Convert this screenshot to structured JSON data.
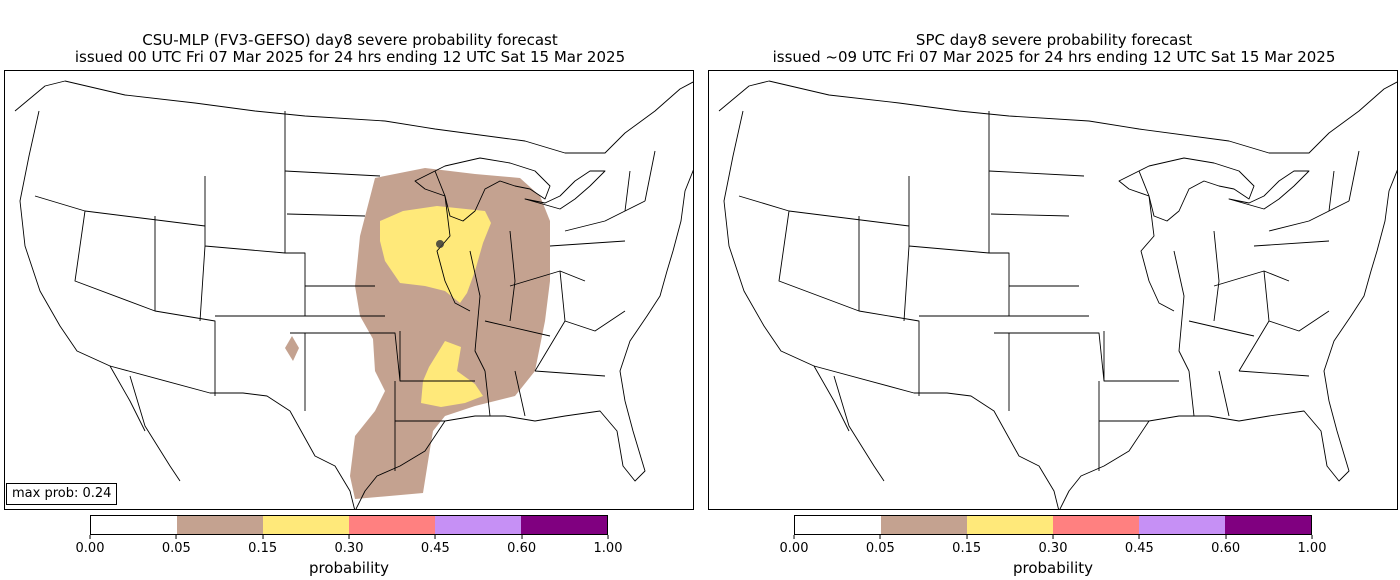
{
  "left_panel": {
    "title_line1": "CSU-MLP (FV3-GEFSO) day8 severe probability forecast",
    "title_line2": "issued 00 UTC Fri 07 Mar 2025 for 24 hrs ending 12 UTC Sat 15 Mar 2025",
    "max_prob_label": "max prob: 0.24",
    "colorbar_label": "probability"
  },
  "right_panel": {
    "title_line1": "SPC day8 severe probability forecast",
    "title_line2": "issued ~09 UTC Fri 07 Mar 2025 for 24 hrs ending 12 UTC Sat 15 Mar 2025",
    "colorbar_label": "probability"
  },
  "colorbar": {
    "ticks": [
      "0.00",
      "0.05",
      "0.15",
      "0.30",
      "0.45",
      "0.60",
      "1.00"
    ],
    "colors": [
      "#ffffff",
      "#c4a290",
      "#ffe97a",
      "#ff8080",
      "#c690f5",
      "#800080"
    ]
  },
  "map_colors": {
    "prob_005_015": "#c4a290",
    "prob_015_030": "#ffe97a",
    "outline": "#000000",
    "marker": "#3a3a3a"
  }
}
